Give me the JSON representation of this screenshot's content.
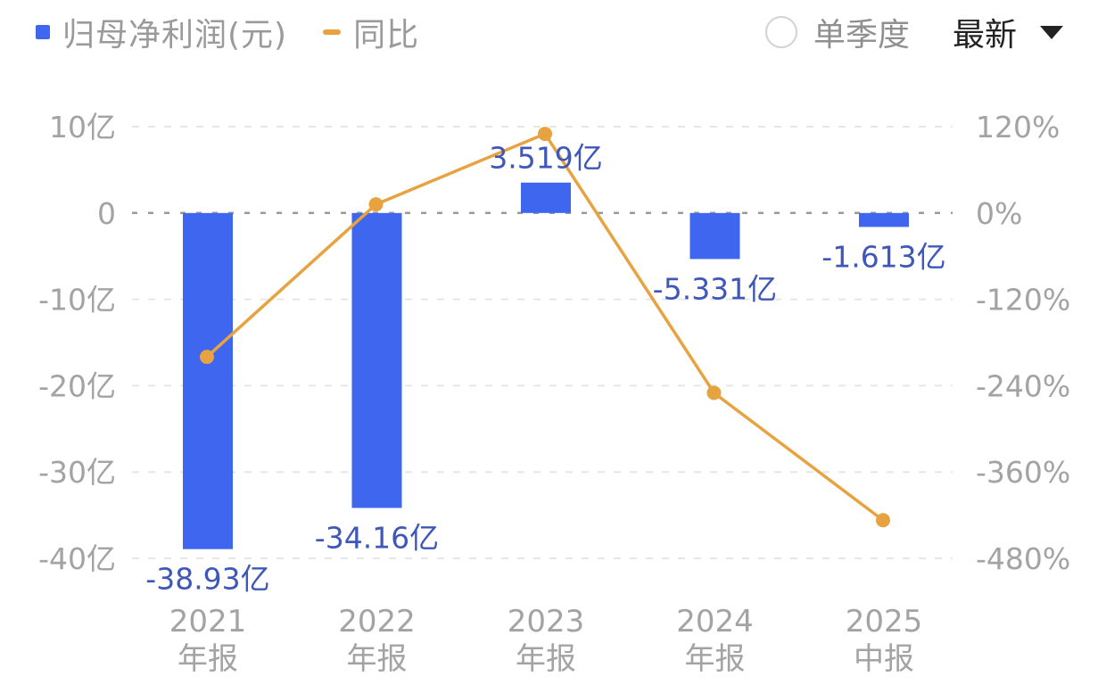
{
  "legend": {
    "bar_label": "归母净利润(元)",
    "line_label": "同比"
  },
  "controls": {
    "quarter_toggle_label": "单季度",
    "select_value": "最新"
  },
  "colors": {
    "bar": "#3f66ee",
    "line": "#e8a341",
    "value_label": "#3f57b8",
    "axis_text": "#a3a3a3",
    "grid": "#e6e6e6",
    "zero_line": "#9a9a9a"
  },
  "chart_data": {
    "type": "bar",
    "categories": [
      [
        "2021",
        "年报"
      ],
      [
        "2022",
        "年报"
      ],
      [
        "2023",
        "年报"
      ],
      [
        "2024",
        "年报"
      ],
      [
        "2025",
        "中报"
      ]
    ],
    "series": [
      {
        "name": "归母净利润(元)",
        "type": "bar",
        "values": [
          -38.93,
          -34.16,
          3.519,
          -5.331,
          -1.613
        ],
        "labels": [
          "-38.93亿",
          "-34.16亿",
          "3.519亿",
          "-5.331亿",
          "-1.613亿"
        ]
      },
      {
        "name": "同比",
        "type": "line",
        "axis": "right",
        "values": [
          -200,
          12,
          110,
          -250,
          -427
        ]
      }
    ],
    "left_axis": {
      "range": [
        -40,
        10
      ],
      "ticks": [
        10,
        0,
        -10,
        -20,
        -30,
        -40
      ],
      "tick_labels": [
        "10亿",
        "0",
        "-10亿",
        "-20亿",
        "-30亿",
        "-40亿"
      ]
    },
    "right_axis": {
      "range": [
        -480,
        120
      ],
      "ticks": [
        120,
        0,
        -120,
        -240,
        -360,
        -480
      ],
      "tick_labels": [
        "120%",
        "0%",
        "-120%",
        "-240%",
        "-360%",
        "-480%"
      ]
    },
    "grid": true
  }
}
